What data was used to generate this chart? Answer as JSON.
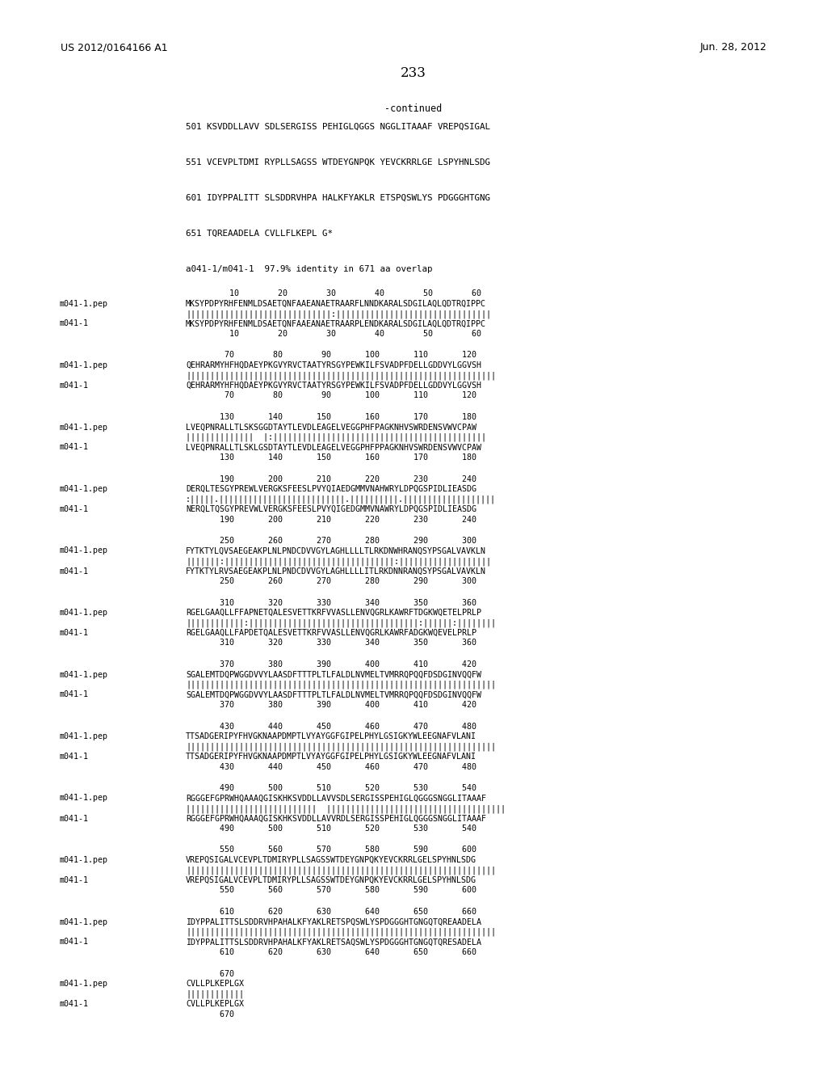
{
  "background_color": "#ffffff",
  "header_left": "US 2012/0164166 A1",
  "header_right": "Jun. 28, 2012",
  "page_number": "233",
  "continued_label": "-continued",
  "sequence_lines": [
    "501 KSVDDLLAVV SDLSERGISS PEHIGLQGGS NGGLITAAAF VREPQSIGAL",
    "551 VCEVPLTDMI RYPLLSAGSS WTDEYGNPQK YEVCKRRLGE LSPYHNLSDG",
    "601 IDYPPALITT SLSDDRVHPA HALKFYAKLR ETSPQSWLYS PDGGGHTGNG",
    "651 TQREAADELA CVLLFLKEPL G*"
  ],
  "identity_line": "a041-1/m041-1  97.9% identity in 671 aa overlap",
  "blocks": [
    {
      "nums_top": "         10        20        30        40        50        60",
      "pep_seq": "MKSYPDPYRHFENMLDSAETQNFAAEANAETRAARFLNNDKARALSDGILAQLQDTRQIPPC",
      "match": "||||||||||||||||||||||||||||||:||||||||||||||||||||||||||||||||",
      "seq_seq": "MKSYPDPYRHFENMLDSAETQNFAAEANAETRAARPLENDKARALSDGILAQLQDTRQIPPC",
      "nums_bot": "         10        20        30        40        50        60"
    },
    {
      "nums_top": "        70        80        90       100       110       120",
      "pep_seq": "QEHRARMYHFHQDAEYPKGVYRVCTAATYRSGYPEWKILFSVADPFDELLGDDVYLGGVSH",
      "match": "||||||||||||||||||||||||||||||||||||||||||||||||||||||||||||||||",
      "seq_seq": "QEHRARMYHFHQDAEYPKGVYRVCTAATYRSGYPEWKILFSVADPFDELLGDDVYLGGVSH",
      "nums_bot": "        70        80        90       100       110       120"
    },
    {
      "nums_top": "       130       140       150       160       170       180",
      "pep_seq": "LVEQPNRALLTLSKSGGDTAYTLEVDLEAGELVEGGPHFPAGKNHVSWRDENSVWVCPAW",
      "match": "||||||||||||||  |:||||||||||||||||||||||||||||||||||||||||||||",
      "seq_seq": "LVEQPNRALLTLSKLGSDTAYTLEVDLEAGELVEGGPHFPPAGKNHVSWRDENSVWVCPAW",
      "nums_bot": "       130       140       150       160       170       180"
    },
    {
      "nums_top": "       190       200       210       220       230       240",
      "pep_seq": "DERQLTESGYPREWLVERGKSFEESLPVYQIAEDGMMVNAHWRYLDPQGSPIDLIEASDG",
      "match": ":|||||.||||||||||||||||||||||||||.||||||||||.|||||||||||||||||||",
      "seq_seq": "NERQLTQSGYPREVWLVERGKSFEESLPVYQIGEDGMMVNAWRYLDPQGSPIDLIEASDG",
      "nums_bot": "       190       200       210       220       230       240"
    },
    {
      "nums_top": "       250       260       270       280       290       300",
      "pep_seq": "FYTKTYLQVSAEGEAKPLNLPNDCDVVGYLAGHLLLLTLRKDNWHRANQSYPSGALVAVKLN",
      "match": "|||||||:|||||||||||||||||||||||||||||||||||:|||||||||||||||||||",
      "seq_seq": "FYTKTYLRVSAEGEAKPLNLPNDCDVVGYLAGHLLLLITLRKDNNRANQSYPSGALVAVKLN",
      "nums_bot": "       250       260       270       280       290       300"
    },
    {
      "nums_top": "       310       320       330       340       350       360",
      "pep_seq": "RGELGAAQLLFFAPNETQALESVETTKRFVVASLLENVQGRLKAWRFTDGKWQETELPRLP",
      "match": "||||||||||||:|||||||||||||||||||||||||||||||||||:||||||:||||||||",
      "seq_seq": "RGELGAAQLLFAPDETQALESVETTKRFVVASLLENVQGRLKAWRFADGKWQEVELPRLP",
      "nums_bot": "       310       320       330       340       350       360"
    },
    {
      "nums_top": "       370       380       390       400       410       420",
      "pep_seq": "SGALEMTDQPWGGDVVYLAASDFTTTPLTLFALDLNVMELTVMRRQPQQFDSDGINVQQFW",
      "match": "||||||||||||||||||||||||||||||||||||||||||||||||||||||||||||||||",
      "seq_seq": "SGALEMTDQPWGGDVVYLAASDFTTTPLTLFALDLNVMELTVMRRQPQQFDSDGINVQQFW",
      "nums_bot": "       370       380       390       400       410       420"
    },
    {
      "nums_top": "       430       440       450       460       470       480",
      "pep_seq": "TTSADGERIPYFHVGKNAAPDMPTLVYAYGGFGIPELPHYLGSIGKYWLEEGNAFVLANI",
      "match": "||||||||||||||||||||||||||||||||||||||||||||||||||||||||||||||||",
      "seq_seq": "TTSADGERIPYFHVGKNAAPDMPTLVYAYGGFGIPELPHYLGSIGKYWLEEGNAFVLANI",
      "nums_bot": "       430       440       450       460       470       480"
    },
    {
      "nums_top": "       490       500       510       520       530       540",
      "pep_seq": "RGGGEFGPRWHQAAAQGISKHKSVDDLLAVVSDLSERGISSPEHIGLQGGGSNGGLITAAAF",
      "match": "|||||||||||||||||||||||||||  |||||||||||||||||||||||||||||||||||||",
      "seq_seq": "RGGGEFGPRWHQAAAQGISKHKSVDDLLAVVRDLSERGISSPEHIGLQGGGSNGGLITAAAF",
      "nums_bot": "       490       500       510       520       530       540"
    },
    {
      "nums_top": "       550       560       570       580       590       600",
      "pep_seq": "VREPQSIGALVCEVPLTDMIRYPLLSAGSSWTDEYGNPQKYEVCKRRLGELSPYHNLSDG",
      "match": "||||||||||||||||||||||||||||||||||||||||||||||||||||||||||||||||",
      "seq_seq": "VREPQSIGALVCEVPLTDMIRYPLLSAGSSWTDEYGNPQKYEVCKRRLGELSPYHNLSDG",
      "nums_bot": "       550       560       570       580       590       600"
    },
    {
      "nums_top": "       610       620       630       640       650       660",
      "pep_seq": "IDYPPALITTSLSDDRVHPAHALKFYAKLRETSPQSWLYSPDGGGHTGNGQTQREAADELA",
      "match": "||||||||||||||||||||||||||||||||||||||||||||||||||||||||||||||||",
      "seq_seq": "IDYPPALITTSLSDDRVHPAHALKFYAKLRETSAQSWLYSPDGGGHTGNGQTQRESADELA",
      "nums_bot": "       610       620       630       640       650       660"
    },
    {
      "nums_top": "       670",
      "pep_seq": "CVLLPLKEPLGX",
      "match": "||||||||||||",
      "seq_seq": "CVLLPLKEPLGX",
      "nums_bot": "       670"
    }
  ]
}
